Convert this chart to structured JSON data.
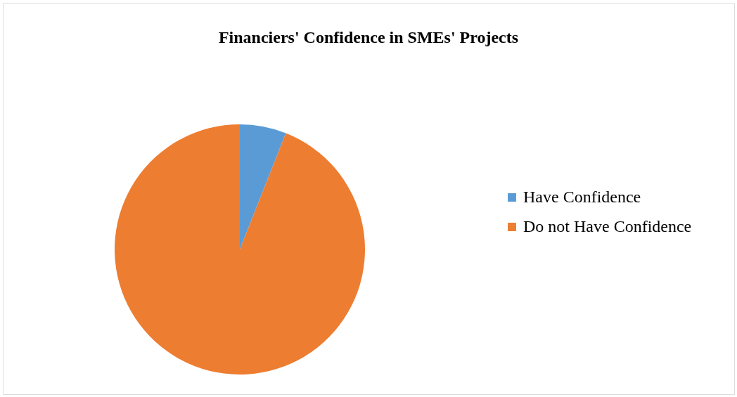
{
  "chart_data": {
    "type": "pie",
    "title": "Financiers' Confidence in SMEs' Projects",
    "categories": [
      "Have Confidence",
      "Do not Have Confidence"
    ],
    "values": [
      6,
      94
    ],
    "colors": [
      "#5b9bd5",
      "#ed7d31"
    ],
    "legend": "right"
  }
}
